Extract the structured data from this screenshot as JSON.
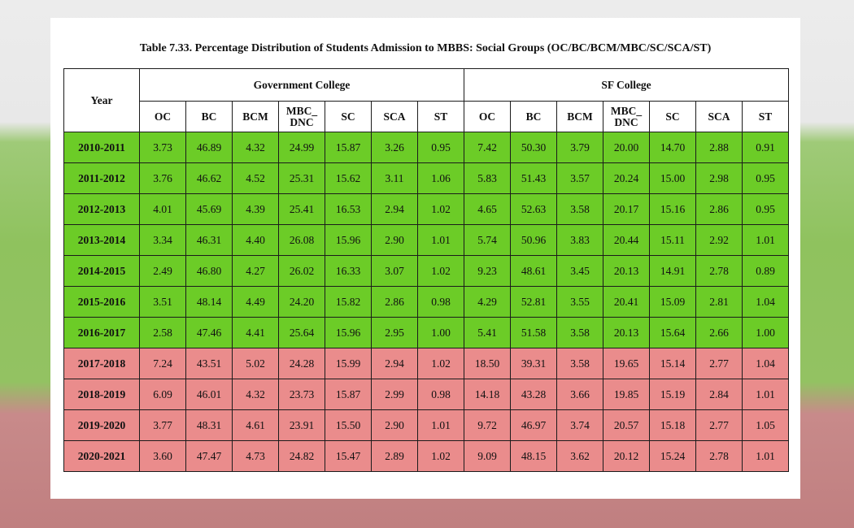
{
  "title": "Table 7.33. Percentage Distribution of Students Admission to MBBS: Social Groups (OC/BC/BCM/MBC/SC/SCA/ST)",
  "header": {
    "year": "Year",
    "gov": "Government College",
    "sf": "SF College",
    "cols": [
      "OC",
      "BC",
      "BCM",
      "MBC_ DNC",
      "SC",
      "SCA",
      "ST"
    ]
  },
  "colors": {
    "green_rows": "#6ccc27",
    "red_rows": "#ea8c8c"
  },
  "rows": [
    {
      "year": "2010-2011",
      "tint": "green",
      "gov": [
        "3.73",
        "46.89",
        "4.32",
        "24.99",
        "15.87",
        "3.26",
        "0.95"
      ],
      "sf": [
        "7.42",
        "50.30",
        "3.79",
        "20.00",
        "14.70",
        "2.88",
        "0.91"
      ]
    },
    {
      "year": "2011-2012",
      "tint": "green",
      "gov": [
        "3.76",
        "46.62",
        "4.52",
        "25.31",
        "15.62",
        "3.11",
        "1.06"
      ],
      "sf": [
        "5.83",
        "51.43",
        "3.57",
        "20.24",
        "15.00",
        "2.98",
        "0.95"
      ]
    },
    {
      "year": "2012-2013",
      "tint": "green",
      "gov": [
        "4.01",
        "45.69",
        "4.39",
        "25.41",
        "16.53",
        "2.94",
        "1.02"
      ],
      "sf": [
        "4.65",
        "52.63",
        "3.58",
        "20.17",
        "15.16",
        "2.86",
        "0.95"
      ]
    },
    {
      "year": "2013-2014",
      "tint": "green",
      "gov": [
        "3.34",
        "46.31",
        "4.40",
        "26.08",
        "15.96",
        "2.90",
        "1.01"
      ],
      "sf": [
        "5.74",
        "50.96",
        "3.83",
        "20.44",
        "15.11",
        "2.92",
        "1.01"
      ]
    },
    {
      "year": "2014-2015",
      "tint": "green",
      "gov": [
        "2.49",
        "46.80",
        "4.27",
        "26.02",
        "16.33",
        "3.07",
        "1.02"
      ],
      "sf": [
        "9.23",
        "48.61",
        "3.45",
        "20.13",
        "14.91",
        "2.78",
        "0.89"
      ]
    },
    {
      "year": "2015-2016",
      "tint": "green",
      "gov": [
        "3.51",
        "48.14",
        "4.49",
        "24.20",
        "15.82",
        "2.86",
        "0.98"
      ],
      "sf": [
        "4.29",
        "52.81",
        "3.55",
        "20.41",
        "15.09",
        "2.81",
        "1.04"
      ]
    },
    {
      "year": "2016-2017",
      "tint": "green",
      "gov": [
        "2.58",
        "47.46",
        "4.41",
        "25.64",
        "15.96",
        "2.95",
        "1.00"
      ],
      "sf": [
        "5.41",
        "51.58",
        "3.58",
        "20.13",
        "15.64",
        "2.66",
        "1.00"
      ]
    },
    {
      "year": "2017-2018",
      "tint": "red",
      "gov": [
        "7.24",
        "43.51",
        "5.02",
        "24.28",
        "15.99",
        "2.94",
        "1.02"
      ],
      "sf": [
        "18.50",
        "39.31",
        "3.58",
        "19.65",
        "15.14",
        "2.77",
        "1.04"
      ]
    },
    {
      "year": "2018-2019",
      "tint": "red",
      "gov": [
        "6.09",
        "46.01",
        "4.32",
        "23.73",
        "15.87",
        "2.99",
        "0.98"
      ],
      "sf": [
        "14.18",
        "43.28",
        "3.66",
        "19.85",
        "15.19",
        "2.84",
        "1.01"
      ]
    },
    {
      "year": "2019-2020",
      "tint": "red",
      "gov": [
        "3.77",
        "48.31",
        "4.61",
        "23.91",
        "15.50",
        "2.90",
        "1.01"
      ],
      "sf": [
        "9.72",
        "46.97",
        "3.74",
        "20.57",
        "15.18",
        "2.77",
        "1.05"
      ]
    },
    {
      "year": "2020-2021",
      "tint": "red",
      "gov": [
        "3.60",
        "47.47",
        "4.73",
        "24.82",
        "15.47",
        "2.89",
        "1.02"
      ],
      "sf": [
        "9.09",
        "48.15",
        "3.62",
        "20.12",
        "15.24",
        "2.78",
        "1.01"
      ]
    }
  ]
}
